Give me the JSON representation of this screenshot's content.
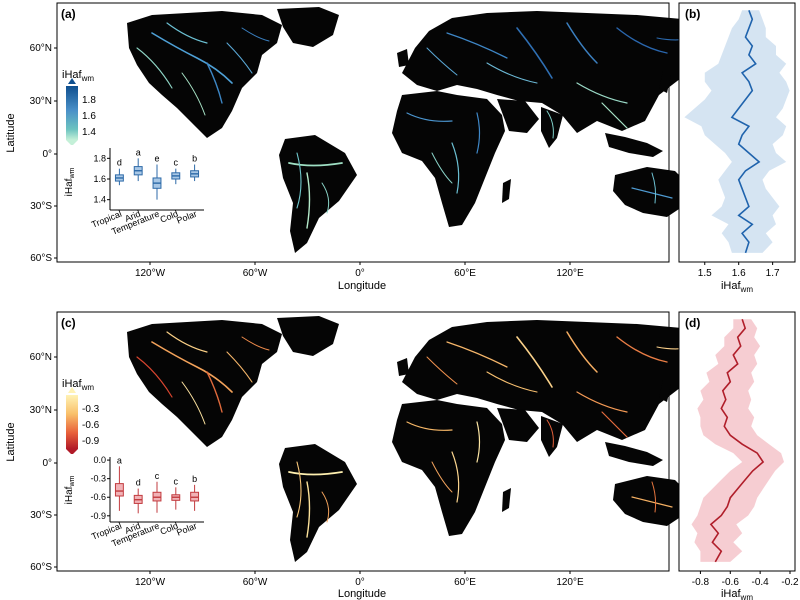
{
  "colors": {
    "blue_dark": "#1a5d9e",
    "blue_mid": "#5b9fd0",
    "blue_light": "#b9d3ea",
    "teal_light": "#a8e6cf",
    "red_dark": "#b8242b",
    "red_mid": "#e8743f",
    "yellow": "#fde9a6",
    "pink_band": "#f2b8bf"
  },
  "chart_data": [
    {
      "panel": "(a)",
      "type": "map",
      "xlabel": "Longitude",
      "ylabel": "Latitude",
      "xticks": [
        "120°W",
        "60°W",
        "0°",
        "60°E",
        "120°E"
      ],
      "yticks": [
        "60°N",
        "30°N",
        "0°",
        "30°S",
        "60°S"
      ],
      "legend": {
        "title": "iHaf",
        "title_sub": "wm",
        "values": [
          "1.8",
          "1.6",
          "1.4"
        ],
        "range": [
          1.35,
          1.85
        ]
      }
    },
    {
      "panel": "(a)-inset",
      "type": "boxplot",
      "ylabel": "iHaf",
      "ylabel_sub": "wm",
      "categories": [
        "Tropical",
        "Arid",
        "Temperature",
        "Cold",
        "Polar"
      ],
      "letters": [
        "d",
        "a",
        "e",
        "c",
        "b"
      ],
      "ylim": [
        1.3,
        1.9
      ],
      "yticks": [
        "1.8",
        "1.6",
        "1.4"
      ],
      "boxes": [
        {
          "min": 1.54,
          "q1": 1.58,
          "median": 1.61,
          "q3": 1.64,
          "max": 1.7
        },
        {
          "min": 1.58,
          "q1": 1.64,
          "median": 1.68,
          "q3": 1.72,
          "max": 1.8
        },
        {
          "min": 1.4,
          "q1": 1.51,
          "median": 1.56,
          "q3": 1.61,
          "max": 1.74
        },
        {
          "min": 1.55,
          "q1": 1.6,
          "median": 1.63,
          "q3": 1.66,
          "max": 1.7
        },
        {
          "min": 1.58,
          "q1": 1.62,
          "median": 1.65,
          "q3": 1.68,
          "max": 1.74
        }
      ]
    },
    {
      "panel": "(b)",
      "type": "line",
      "xlabel": "iHaf",
      "xlabel_sub": "wm",
      "xlim": [
        1.43,
        1.76
      ],
      "xticks": [
        "1.5",
        "1.6",
        "1.7"
      ],
      "ylim": [
        -60,
        83
      ],
      "series": [
        {
          "lat": [
            -56,
            -50,
            -45,
            -40,
            -35,
            -30,
            -25,
            -20,
            -15,
            -10,
            -5,
            0,
            5,
            10,
            15,
            20,
            25,
            30,
            35,
            40,
            45,
            50,
            55,
            60,
            65,
            70,
            75,
            80
          ],
          "value": [
            1.62,
            1.63,
            1.61,
            1.64,
            1.6,
            1.63,
            1.62,
            1.61,
            1.6,
            1.62,
            1.66,
            1.63,
            1.6,
            1.61,
            1.63,
            1.58,
            1.6,
            1.62,
            1.64,
            1.63,
            1.61,
            1.65,
            1.63,
            1.64,
            1.62,
            1.63,
            1.64,
            1.63
          ],
          "lower": [
            1.58,
            1.57,
            1.55,
            1.57,
            1.52,
            1.55,
            1.56,
            1.55,
            1.54,
            1.56,
            1.58,
            1.56,
            1.53,
            1.5,
            1.49,
            1.44,
            1.47,
            1.5,
            1.52,
            1.5,
            1.5,
            1.54,
            1.55,
            1.56,
            1.57,
            1.58,
            1.6,
            1.61
          ],
          "upper": [
            1.67,
            1.7,
            1.68,
            1.71,
            1.7,
            1.72,
            1.7,
            1.68,
            1.67,
            1.69,
            1.74,
            1.71,
            1.7,
            1.73,
            1.74,
            1.71,
            1.73,
            1.74,
            1.75,
            1.74,
            1.72,
            1.74,
            1.71,
            1.71,
            1.68,
            1.68,
            1.67,
            1.66
          ]
        }
      ]
    },
    {
      "panel": "(c)",
      "type": "map",
      "xlabel": "Longitude",
      "ylabel": "Latitude",
      "xticks": [
        "120°W",
        "60°W",
        "0°",
        "60°E",
        "120°E"
      ],
      "yticks": [
        "60°N",
        "30°N",
        "0°",
        "30°S",
        "60°S"
      ],
      "legend": {
        "title": "iHaf",
        "title_sub": "wm",
        "values": [
          "-0.3",
          "-0.6",
          "-0.9"
        ],
        "range": [
          -1.0,
          -0.15
        ]
      }
    },
    {
      "panel": "(c)-inset",
      "type": "boxplot",
      "ylabel": "iHaf",
      "ylabel_sub": "wm",
      "categories": [
        "Tropical",
        "Arid",
        "Temperature",
        "Cold",
        "Polar"
      ],
      "letters": [
        "a",
        "d",
        "c",
        "c",
        "b"
      ],
      "ylim": [
        -1.0,
        0.05
      ],
      "yticks": [
        "0.0",
        "-0.3",
        "-0.6",
        "-0.9"
      ],
      "boxes": [
        {
          "min": -0.82,
          "q1": -0.58,
          "median": -0.5,
          "q3": -0.38,
          "max": -0.1
        },
        {
          "min": -0.86,
          "q1": -0.7,
          "median": -0.64,
          "q3": -0.57,
          "max": -0.46
        },
        {
          "min": -0.85,
          "q1": -0.66,
          "median": -0.6,
          "q3": -0.52,
          "max": -0.35
        },
        {
          "min": -0.8,
          "q1": -0.65,
          "median": -0.6,
          "q3": -0.56,
          "max": -0.44
        },
        {
          "min": -0.82,
          "q1": -0.66,
          "median": -0.6,
          "q3": -0.52,
          "max": -0.4
        }
      ]
    },
    {
      "panel": "(d)",
      "type": "line",
      "xlabel": "iHaf",
      "xlabel_sub": "wm",
      "xlim": [
        -0.93,
        -0.18
      ],
      "xticks": [
        "-0.8",
        "-0.6",
        "-0.4",
        "-0.2"
      ],
      "ylim": [
        -60,
        83
      ],
      "series": [
        {
          "lat": [
            -56,
            -50,
            -45,
            -40,
            -35,
            -30,
            -25,
            -20,
            -15,
            -10,
            -5,
            0,
            5,
            10,
            15,
            20,
            25,
            30,
            35,
            40,
            45,
            50,
            55,
            60,
            65,
            70,
            75,
            80
          ],
          "value": [
            -0.7,
            -0.66,
            -0.72,
            -0.68,
            -0.73,
            -0.66,
            -0.62,
            -0.6,
            -0.55,
            -0.5,
            -0.45,
            -0.38,
            -0.42,
            -0.52,
            -0.6,
            -0.64,
            -0.62,
            -0.66,
            -0.63,
            -0.65,
            -0.6,
            -0.62,
            -0.55,
            -0.58,
            -0.53,
            -0.55,
            -0.5,
            -0.52
          ],
          "lower": [
            -0.8,
            -0.8,
            -0.84,
            -0.82,
            -0.86,
            -0.82,
            -0.8,
            -0.78,
            -0.72,
            -0.66,
            -0.6,
            -0.52,
            -0.58,
            -0.7,
            -0.78,
            -0.8,
            -0.8,
            -0.82,
            -0.78,
            -0.8,
            -0.74,
            -0.76,
            -0.68,
            -0.7,
            -0.64,
            -0.64,
            -0.58,
            -0.58
          ],
          "upper": [
            -0.6,
            -0.52,
            -0.58,
            -0.52,
            -0.56,
            -0.48,
            -0.44,
            -0.42,
            -0.38,
            -0.34,
            -0.3,
            -0.24,
            -0.26,
            -0.34,
            -0.42,
            -0.46,
            -0.44,
            -0.48,
            -0.46,
            -0.48,
            -0.44,
            -0.46,
            -0.42,
            -0.44,
            -0.4,
            -0.44,
            -0.42,
            -0.46
          ]
        }
      ]
    }
  ]
}
